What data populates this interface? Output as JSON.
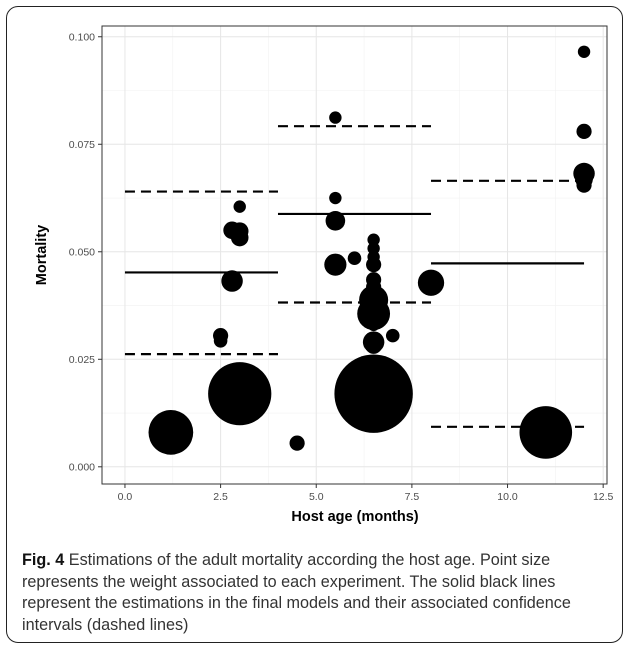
{
  "caption": {
    "label": "Fig. 4",
    "text": "Estimations of the adult mortality according the host age. Point size represents the weight associated to each experiment. The solid black lines represent the estimations in the final models and their associated confidence intervals (dashed lines)"
  },
  "chart_data": {
    "type": "scatter",
    "xlabel": "Host age (months)",
    "ylabel": "Mortality",
    "xlim": [
      -0.6,
      12.6
    ],
    "ylim": [
      -0.004,
      0.1025
    ],
    "x_ticks": [
      0.0,
      2.5,
      5.0,
      7.5,
      10.0,
      12.5
    ],
    "x_tick_labels": [
      "0.0",
      "2.5",
      "5.0",
      "7.5",
      "10.0",
      "12.5"
    ],
    "y_ticks": [
      0.0,
      0.025,
      0.05,
      0.075,
      0.1
    ],
    "y_tick_labels": [
      "0.000",
      "0.025",
      "0.050",
      "0.075",
      "0.100"
    ],
    "grid": true,
    "point_color": "#000000",
    "points": [
      {
        "x": 1.2,
        "y": 0.008,
        "weight": 13
      },
      {
        "x": 2.5,
        "y": 0.0305,
        "weight": 1.5
      },
      {
        "x": 2.5,
        "y": 0.0293,
        "weight": 1.2
      },
      {
        "x": 2.8,
        "y": 0.0432,
        "weight": 3
      },
      {
        "x": 2.8,
        "y": 0.055,
        "weight": 2
      },
      {
        "x": 3.0,
        "y": 0.0548,
        "weight": 2
      },
      {
        "x": 3.0,
        "y": 0.0533,
        "weight": 2
      },
      {
        "x": 3.0,
        "y": 0.0605,
        "weight": 1
      },
      {
        "x": 3.0,
        "y": 0.017,
        "weight": 26
      },
      {
        "x": 4.5,
        "y": 0.0055,
        "weight": 1.5
      },
      {
        "x": 5.5,
        "y": 0.0812,
        "weight": 1
      },
      {
        "x": 5.5,
        "y": 0.0625,
        "weight": 1
      },
      {
        "x": 5.5,
        "y": 0.0572,
        "weight": 2.5
      },
      {
        "x": 5.5,
        "y": 0.047,
        "weight": 3.2
      },
      {
        "x": 6.0,
        "y": 0.0485,
        "weight": 1.2
      },
      {
        "x": 6.5,
        "y": 0.0528,
        "weight": 1
      },
      {
        "x": 6.5,
        "y": 0.0508,
        "weight": 1
      },
      {
        "x": 6.5,
        "y": 0.0488,
        "weight": 1
      },
      {
        "x": 6.5,
        "y": 0.047,
        "weight": 1.5
      },
      {
        "x": 6.5,
        "y": 0.0435,
        "weight": 1.5
      },
      {
        "x": 6.5,
        "y": 0.0418,
        "weight": 1.5
      },
      {
        "x": 6.5,
        "y": 0.04,
        "weight": 2
      },
      {
        "x": 6.5,
        "y": 0.0388,
        "weight": 5.5
      },
      {
        "x": 6.5,
        "y": 0.0356,
        "weight": 7
      },
      {
        "x": 6.5,
        "y": 0.033,
        "weight": 1
      },
      {
        "x": 6.5,
        "y": 0.029,
        "weight": 3
      },
      {
        "x": 6.5,
        "y": 0.0283,
        "weight": 2
      },
      {
        "x": 6.5,
        "y": 0.017,
        "weight": 40
      },
      {
        "x": 7.0,
        "y": 0.0305,
        "weight": 1.2
      },
      {
        "x": 8.0,
        "y": 0.0428,
        "weight": 4.5
      },
      {
        "x": 11.0,
        "y": 0.008,
        "weight": 18
      },
      {
        "x": 12.0,
        "y": 0.0965,
        "weight": 1
      },
      {
        "x": 12.0,
        "y": 0.078,
        "weight": 1.5
      },
      {
        "x": 12.0,
        "y": 0.0682,
        "weight": 3
      },
      {
        "x": 12.0,
        "y": 0.0668,
        "weight": 2
      },
      {
        "x": 12.0,
        "y": 0.0655,
        "weight": 1.5
      }
    ],
    "estimates": [
      {
        "x0": 0.0,
        "x1": 4.0,
        "estimate": 0.0452,
        "lower": 0.0262,
        "upper": 0.064
      },
      {
        "x0": 4.0,
        "x1": 8.0,
        "estimate": 0.0588,
        "lower": 0.0382,
        "upper": 0.0792
      },
      {
        "x0": 8.0,
        "x1": 12.0,
        "estimate": 0.0473,
        "lower": 0.0093,
        "upper": 0.0665
      }
    ]
  }
}
